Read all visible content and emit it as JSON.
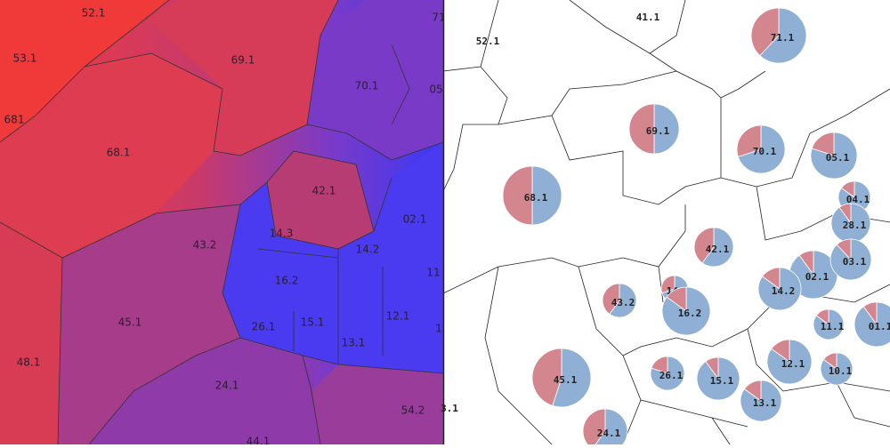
{
  "left_map": {
    "labels": [
      "52.1",
      "71",
      "53.1",
      "69.1",
      "70.1",
      "05",
      "681",
      "68.1",
      "42.1",
      "14.3",
      "43.2",
      "14.2",
      "02.1",
      "16.2",
      "11",
      "45.1",
      "26.1",
      "15.1",
      "12.1",
      "13.1",
      "1",
      "48.1",
      "24.1",
      "54.2",
      "44.1"
    ]
  },
  "right_map": {
    "labels": [
      "52.1",
      "41.1",
      "3.1"
    ],
    "red_color": "#d4868f",
    "blue_color": "#8fb0d4",
    "pies": [
      {
        "label": "71.1",
        "red_share": 38
      },
      {
        "label": "69.1",
        "red_share": 50
      },
      {
        "label": "68.1",
        "red_share": 50
      },
      {
        "label": "70.1",
        "red_share": 30
      },
      {
        "label": "05.1",
        "red_share": 20
      },
      {
        "label": "04.1",
        "red_share": 15
      },
      {
        "label": "28.1",
        "red_share": 10
      },
      {
        "label": "42.1",
        "red_share": 40
      },
      {
        "label": "14.3",
        "red_share": 30
      },
      {
        "label": "43.2",
        "red_share": 40
      },
      {
        "label": "16.2",
        "red_share": 15
      },
      {
        "label": "02.1",
        "red_share": 10
      },
      {
        "label": "03.1",
        "red_share": 12
      },
      {
        "label": "14.2",
        "red_share": 15
      },
      {
        "label": "11.1",
        "red_share": 15
      },
      {
        "label": "01.1",
        "red_share": 10
      },
      {
        "label": "45.1",
        "red_share": 45
      },
      {
        "label": "26.1",
        "red_share": 20
      },
      {
        "label": "15.1",
        "red_share": 10
      },
      {
        "label": "12.1",
        "red_share": 15
      },
      {
        "label": "10.1",
        "red_share": 15
      },
      {
        "label": "13.1",
        "red_share": 15
      },
      {
        "label": "24.1",
        "red_share": 40
      }
    ]
  }
}
